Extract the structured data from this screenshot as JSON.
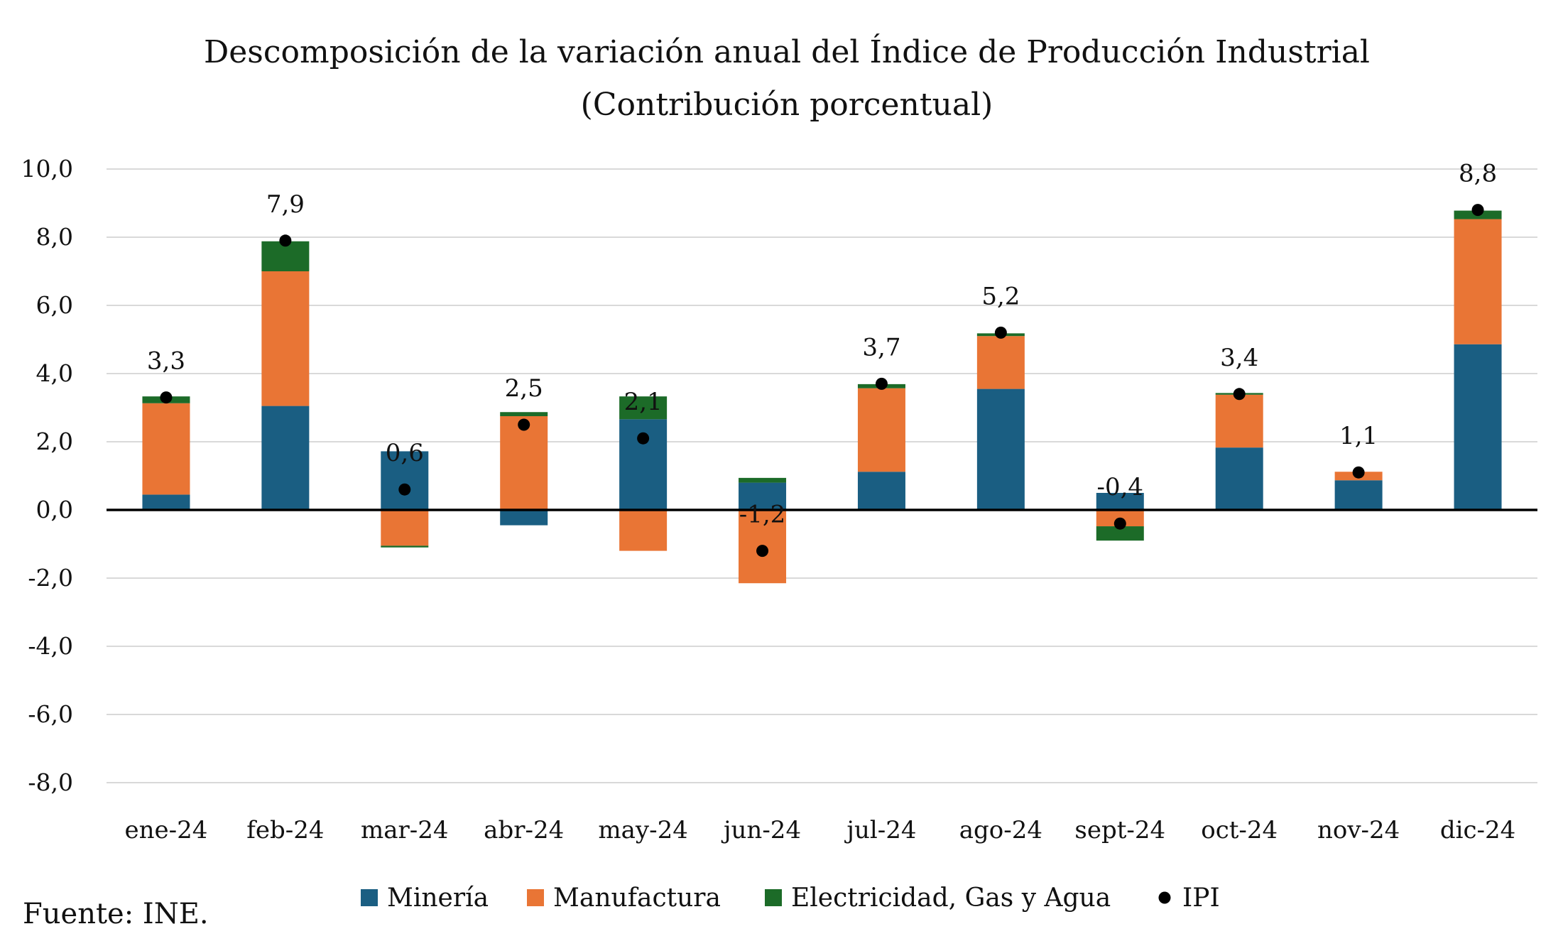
{
  "chart_data": {
    "type": "bar",
    "stacked": true,
    "title": "Descomposición de la variación anual del Índice de Producción Industrial",
    "subtitle": "(Contribución porcentual)",
    "xlabel": "",
    "ylabel": "",
    "ylim": [
      -8,
      10
    ],
    "yticks": [
      10,
      8,
      6,
      4,
      2,
      0,
      -2,
      -4,
      -6,
      -8
    ],
    "ytick_labels": [
      "10,0",
      "8,0",
      "6,0",
      "4,0",
      "2,0",
      "0,0",
      "-2,0",
      "-4,0",
      "-6,0",
      "-8,0"
    ],
    "grid": true,
    "legend_position": "bottom",
    "categories": [
      "ene-24",
      "feb-24",
      "mar-24",
      "abr-24",
      "may-24",
      "jun-24",
      "jul-24",
      "ago-24",
      "sept-24",
      "oct-24",
      "nov-24",
      "dic-24"
    ],
    "series": [
      {
        "name": "Minería",
        "color": "#1a5e82",
        "values": [
          0.45,
          3.05,
          1.72,
          -0.45,
          2.66,
          0.8,
          1.12,
          3.55,
          0.5,
          1.83,
          0.87,
          4.86
        ]
      },
      {
        "name": "Manufactura",
        "color": "#e97535",
        "values": [
          2.68,
          3.95,
          -1.05,
          2.75,
          -1.2,
          -2.15,
          2.45,
          1.55,
          -0.48,
          1.55,
          0.25,
          3.67
        ]
      },
      {
        "name": "Electricidad, Gas y Agua",
        "color": "#1c6b28",
        "values": [
          0.2,
          0.88,
          -0.05,
          0.12,
          0.67,
          0.14,
          0.12,
          0.08,
          -0.42,
          0.05,
          0.0,
          0.25
        ]
      }
    ],
    "line_series": {
      "name": "IPI",
      "marker": "dot",
      "color": "#000000",
      "values": [
        3.3,
        7.9,
        0.6,
        2.5,
        2.1,
        -1.2,
        3.7,
        5.2,
        -0.4,
        3.4,
        1.1,
        8.8
      ]
    },
    "data_labels": [
      "3,3",
      "7,9",
      "0,6",
      "2,5",
      "2,1",
      "-1,2",
      "3,7",
      "5,2",
      "-0,4",
      "3,4",
      "1,1",
      "8,8"
    ]
  },
  "footer": {
    "source": "Fuente: INE."
  },
  "colors": {
    "grid": "#d9d9d9",
    "zero_line": "#000000"
  }
}
